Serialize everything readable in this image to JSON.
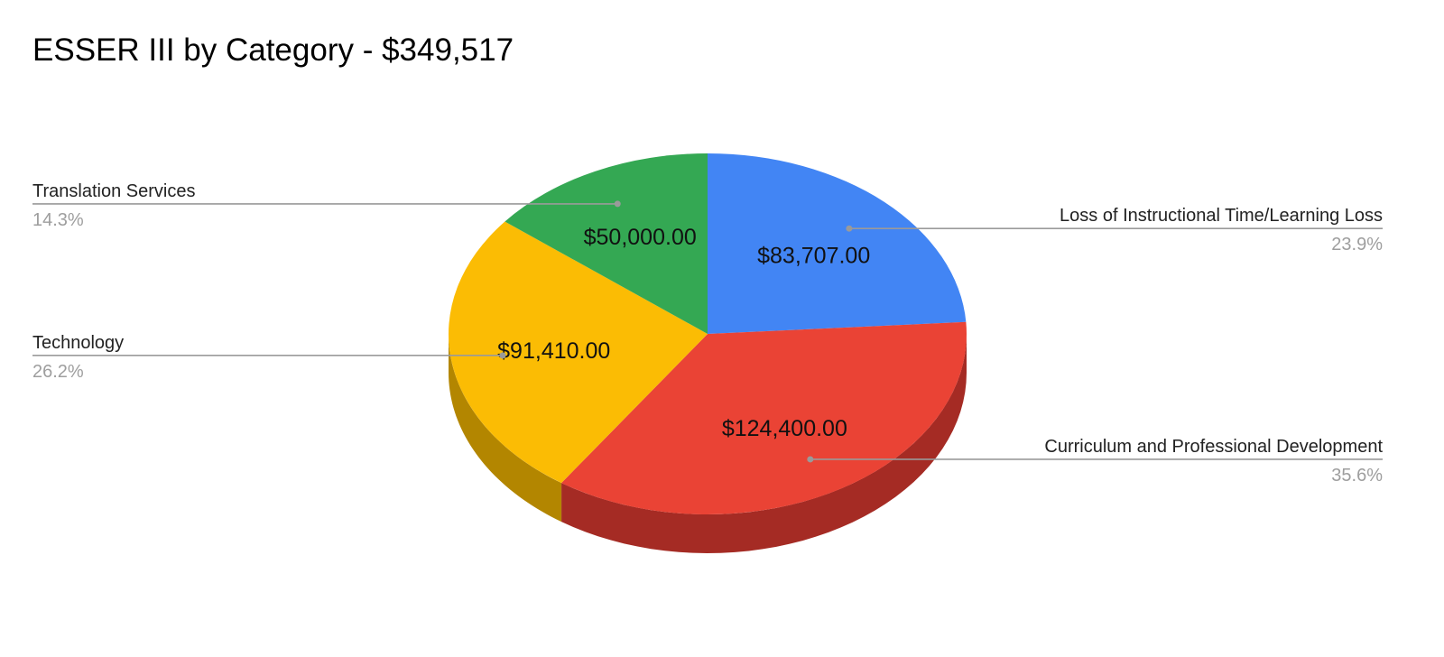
{
  "chart_data": {
    "type": "pie",
    "title": "ESSER III by Category - $349,517",
    "slices": [
      {
        "name": "Loss of Instructional Time/Learning Loss",
        "value": 83707,
        "value_label": "$83,707.00",
        "percent_label": "23.9%",
        "color": "#4285f4",
        "side_color": "#2b5fb3"
      },
      {
        "name": "Curriculum and Professional Development",
        "value": 124400,
        "value_label": "$124,400.00",
        "percent_label": "35.6%",
        "color": "#ea4335",
        "side_color": "#a52b24"
      },
      {
        "name": "Technology",
        "value": 91410,
        "value_label": "$91,410.00",
        "percent_label": "26.2%",
        "color": "#fbbc04",
        "side_color": "#b38600"
      },
      {
        "name": "Translation Services",
        "value": 50000,
        "value_label": "$50,000.00",
        "percent_label": "14.3%",
        "color": "#34a853",
        "side_color": "#247a3b"
      }
    ],
    "legend": "labels-outside"
  }
}
